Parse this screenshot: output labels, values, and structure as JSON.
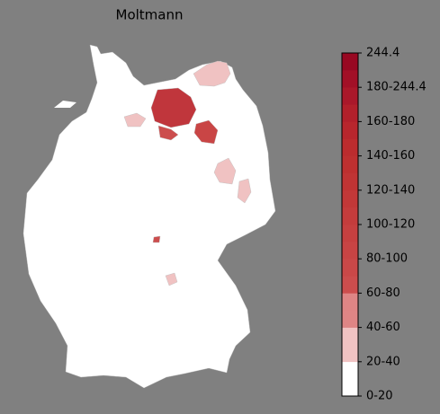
{
  "chart_data": {
    "type": "choropleth",
    "title": "Moltmann",
    "colorbar": {
      "labels": [
        "0-20",
        "20-40",
        "40-60",
        "60-80",
        "80-100",
        "100-120",
        "120-140",
        "140-160",
        "160-180",
        "180-244.4",
        "244.4"
      ],
      "colors": [
        "#ffffff",
        "#ffffff",
        "#f0c2c2",
        "#f0c2c2",
        "#de8585",
        "#de8585",
        "#cc4d4d",
        "#ca4848",
        "#c84444",
        "#c64040",
        "#c43c3c",
        "#c23838",
        "#c03434",
        "#be3030",
        "#bc2c2e",
        "#b8262d",
        "#b2202b",
        "#aa182a",
        "#a21027",
        "#980822"
      ]
    }
  }
}
